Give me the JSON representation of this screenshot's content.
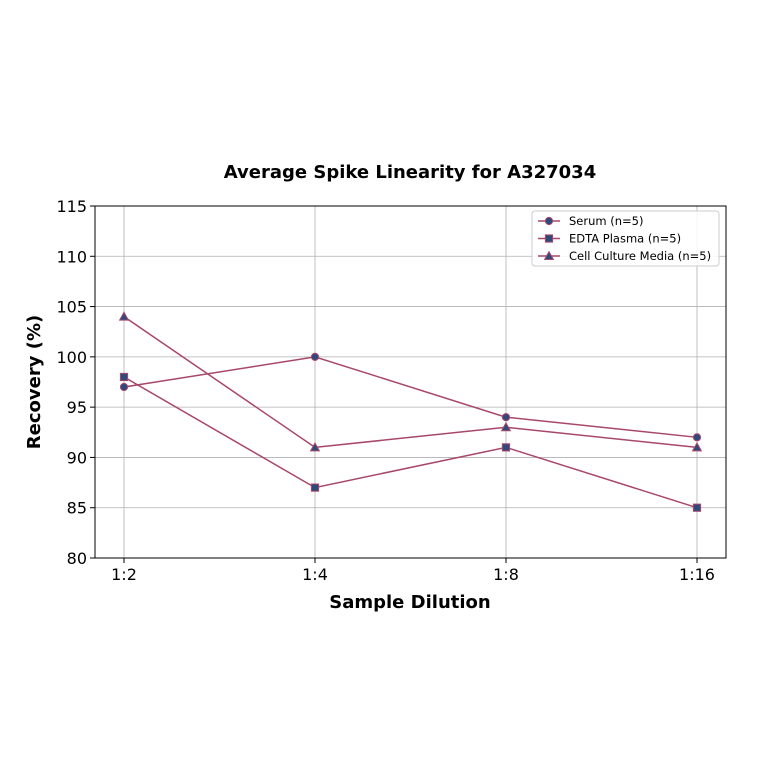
{
  "chart_data": {
    "type": "line",
    "title": "Average Spike Linearity for A327034",
    "xlabel": "Sample Dilution",
    "ylabel": "Recovery (%)",
    "categories": [
      "1:2",
      "1:4",
      "1:8",
      "1:16"
    ],
    "ylim": [
      80,
      115
    ],
    "yticks": [
      80,
      85,
      90,
      95,
      100,
      105,
      110,
      115
    ],
    "grid": true,
    "legend_position": "top-right",
    "line_color": "#a8476a",
    "marker_color": "#2d4a7a",
    "series": [
      {
        "name": "Serum (n=5)",
        "marker": "circle",
        "values": [
          97,
          100,
          94,
          92
        ]
      },
      {
        "name": "EDTA Plasma (n=5)",
        "marker": "square",
        "values": [
          98,
          87,
          91,
          85
        ]
      },
      {
        "name": "Cell Culture Media (n=5)",
        "marker": "triangle",
        "values": [
          104,
          91,
          93,
          91
        ]
      }
    ]
  }
}
